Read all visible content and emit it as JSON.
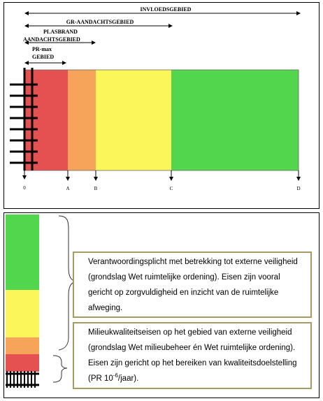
{
  "top_diagram": {
    "arrows": [
      {
        "label": "INVLOEDSGEBIED"
      },
      {
        "label": "GR-AANDACHTSGEBIED"
      },
      {
        "label_line1": "PLASBRAND",
        "label_line2": "AANDACHTSGEBIED"
      },
      {
        "label_line1": "PR-max",
        "label_line2": "GEBIED"
      }
    ],
    "zones": [
      {
        "name": "red",
        "color": "#e55050"
      },
      {
        "name": "orange",
        "color": "#f5a45a"
      },
      {
        "name": "yellow",
        "color": "#fbf75a"
      },
      {
        "name": "green",
        "color": "#52d64e"
      }
    ],
    "markers": [
      "0",
      "A",
      "B",
      "C",
      "D"
    ]
  },
  "bottom_diagram": {
    "stack_colors": {
      "green": "#52d64e",
      "yellow": "#fbf75a",
      "orange": "#f5a45a",
      "red": "#e55050"
    },
    "note1": {
      "text": "Verantwoordingsplicht met betrekking tot externe veiligheid (grondslag Wet ruimtelijke ordening). Eisen zijn vooral gericht op zorgvuldigheid en inzicht van de ruimtelijke afweging."
    },
    "note2": {
      "text_before": "Milieukwaliteitseisen op het gebied van externe veiligheid (grondslag Wet milieubeheer én Wet ruimtelijke ordening). Eisen zijn gericht op het bereiken van kwaliteitsdoelstelling (PR 10",
      "exponent": "-6",
      "text_after": "/jaar)."
    }
  }
}
